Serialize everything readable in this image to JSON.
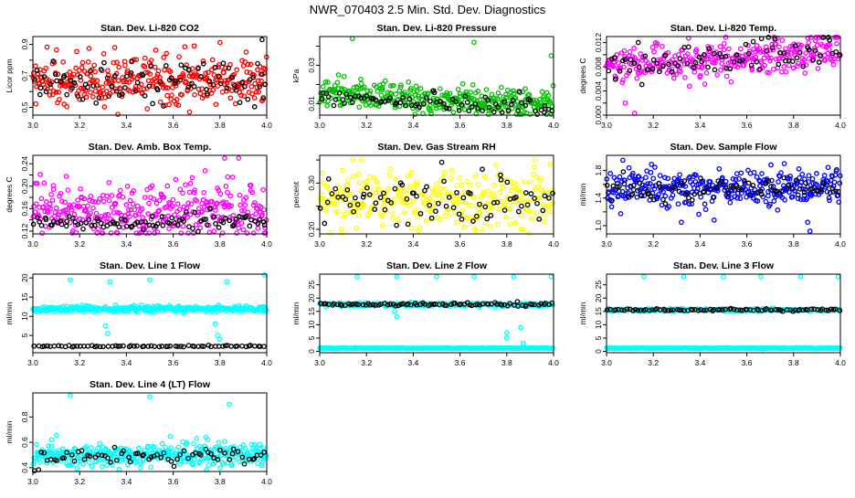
{
  "page_title": "NWR_070403  2.5 Min. Std. Dev. Diagnostics",
  "chart_data": [
    {
      "type": "scatter",
      "title": "Stan. Dev. Li-820 CO2",
      "ylabel": "Licor ppm",
      "xlim": [
        3.0,
        4.0
      ],
      "ylim": [
        0.45,
        0.95
      ],
      "xticks": [
        3.0,
        3.2,
        3.4,
        3.6,
        3.8,
        4.0
      ],
      "yticks": [
        0.5,
        0.6,
        0.7,
        0.8,
        0.9
      ],
      "x_tick_labels": [
        "3.0",
        "3.2",
        "3.4",
        "3.6",
        "3.8",
        "4.0"
      ],
      "y_tick_labels": [
        "0.5",
        "",
        "0.7",
        "",
        "0.9"
      ],
      "series": [
        {
          "name": "series-red",
          "color": "#ff0000",
          "n": 340,
          "mean": 0.665,
          "sd": 0.075,
          "outliers": [
            [
              3.22,
              0.58
            ],
            [
              3.35,
              0.88
            ],
            [
              3.67,
              0.47
            ],
            [
              3.69,
              0.89
            ]
          ]
        },
        {
          "name": "series-black",
          "color": "#000000",
          "n": 90,
          "mean": 0.66,
          "sd": 0.07,
          "outliers": [
            [
              3.98,
              0.93
            ],
            [
              3.985,
              0.56
            ]
          ]
        }
      ]
    },
    {
      "type": "scatter",
      "title": "Stan. Dev. Li-820 Pressure",
      "ylabel": "kPa",
      "xlim": [
        3.0,
        4.0
      ],
      "ylim": [
        0.004,
        0.045
      ],
      "xticks": [
        3.0,
        3.2,
        3.4,
        3.6,
        3.8,
        4.0
      ],
      "yticks": [
        0.01,
        0.02,
        0.03,
        0.04
      ],
      "x_tick_labels": [
        "3.0",
        "3.2",
        "3.4",
        "3.6",
        "3.8",
        "4.0"
      ],
      "y_tick_labels": [
        "0.01",
        "",
        "0.03",
        ""
      ],
      "series": [
        {
          "name": "series-green",
          "color": "#00c000",
          "n": 340,
          "mean": 0.0125,
          "sd": 0.0035,
          "trend": -0.006,
          "outliers": [
            [
              3.14,
              0.044
            ],
            [
              3.66,
              0.042
            ],
            [
              3.99,
              0.035
            ],
            [
              3.08,
              0.025
            ]
          ]
        },
        {
          "name": "series-black",
          "color": "#000000",
          "n": 80,
          "mean": 0.0105,
          "sd": 0.0025,
          "trend": -0.004,
          "outliers": []
        }
      ]
    },
    {
      "type": "scatter",
      "title": "Stan. Dev. Li-820 Temp.",
      "ylabel": "degrees C",
      "xlim": [
        3.0,
        4.0
      ],
      "ylim": [
        0.0,
        0.013
      ],
      "xticks": [
        3.0,
        3.2,
        3.4,
        3.6,
        3.8,
        4.0
      ],
      "yticks": [
        0.0,
        0.002,
        0.004,
        0.006,
        0.008,
        0.01,
        0.012
      ],
      "x_tick_labels": [
        "3.0",
        "3.2",
        "3.4",
        "3.6",
        "3.8",
        "4.0"
      ],
      "y_tick_labels": [
        "0.000",
        "",
        "0.004",
        "",
        "0.008",
        "",
        "0.012"
      ],
      "series": [
        {
          "name": "series-magenta",
          "color": "#ff00ff",
          "n": 320,
          "mean": 0.0095,
          "sd": 0.0015,
          "trend": 0.003,
          "outliers": [
            [
              3.12,
              0.0003
            ],
            [
              3.08,
              0.002
            ]
          ]
        },
        {
          "name": "series-black",
          "color": "#000000",
          "n": 80,
          "mean": 0.0095,
          "sd": 0.0015,
          "trend": 0.003,
          "outliers": []
        }
      ]
    },
    {
      "type": "scatter",
      "title": "Stan. Dev. Amb. Box Temp.",
      "ylabel": "degrees C",
      "xlim": [
        3.0,
        4.0
      ],
      "ylim": [
        0.115,
        0.255
      ],
      "xticks": [
        3.0,
        3.2,
        3.4,
        3.6,
        3.8,
        4.0
      ],
      "yticks": [
        0.12,
        0.14,
        0.16,
        0.18,
        0.2,
        0.22,
        0.24
      ],
      "x_tick_labels": [
        "3.0",
        "3.2",
        "3.4",
        "3.6",
        "3.8",
        "4.0"
      ],
      "y_tick_labels": [
        "0.12",
        "",
        "0.16",
        "",
        "0.20",
        "",
        "0.24"
      ],
      "series": [
        {
          "name": "series-magenta",
          "color": "#ff00ff",
          "n": 340,
          "mean": 0.155,
          "sd": 0.025,
          "outliers": [
            [
              3.82,
              0.25
            ],
            [
              3.88,
              0.25
            ]
          ]
        },
        {
          "name": "series-black",
          "color": "#000000",
          "n": 90,
          "mean": 0.135,
          "sd": 0.008,
          "outliers": []
        }
      ]
    },
    {
      "type": "scatter",
      "title": "Stan. Dev. Gas Stream RH",
      "ylabel": "percent",
      "xlim": [
        3.0,
        4.0
      ],
      "ylim": [
        0.19,
        0.36
      ],
      "xticks": [
        3.0,
        3.2,
        3.4,
        3.6,
        3.8,
        4.0
      ],
      "yticks": [
        0.2,
        0.25,
        0.3,
        0.35
      ],
      "x_tick_labels": [
        "3.0",
        "3.2",
        "3.4",
        "3.6",
        "3.8",
        "4.0"
      ],
      "y_tick_labels": [
        "0.20",
        "",
        "0.30",
        ""
      ],
      "series": [
        {
          "name": "series-yellow",
          "color": "#ffff00",
          "n": 320,
          "mean": 0.265,
          "sd": 0.03,
          "outliers": [
            [
              3.18,
              0.35
            ],
            [
              3.92,
              0.35
            ]
          ]
        },
        {
          "name": "series-black",
          "color": "#000000",
          "n": 80,
          "mean": 0.26,
          "sd": 0.025,
          "outliers": []
        }
      ]
    },
    {
      "type": "scatter",
      "title": "Stan. Dev. Sample Flow",
      "ylabel": "ml/min",
      "xlim": [
        3.0,
        4.0
      ],
      "ylim": [
        0.88,
        2.02
      ],
      "xticks": [
        3.0,
        3.2,
        3.4,
        3.6,
        3.8,
        4.0
      ],
      "yticks": [
        1.0,
        1.2,
        1.4,
        1.6,
        1.8
      ],
      "x_tick_labels": [
        "3.0",
        "3.2",
        "3.4",
        "3.6",
        "3.8",
        "4.0"
      ],
      "y_tick_labels": [
        "1.0",
        "",
        "1.4",
        "",
        "1.8"
      ],
      "series": [
        {
          "name": "series-blue",
          "color": "#0000ff",
          "n": 340,
          "mean": 1.55,
          "sd": 0.13,
          "outliers": [
            [
              3.07,
              1.95
            ],
            [
              3.32,
              1.05
            ],
            [
              3.87,
              0.92
            ],
            [
              3.86,
              1.05
            ],
            [
              3.76,
              1.9
            ]
          ]
        },
        {
          "name": "series-black",
          "color": "#000000",
          "n": 80,
          "mean": 1.52,
          "sd": 0.08,
          "outliers": []
        }
      ]
    },
    {
      "type": "scatter",
      "title": "Stan. Dev. Line 1 Flow",
      "ylabel": "ml/min",
      "xlim": [
        3.0,
        4.0
      ],
      "ylim": [
        0.5,
        21.0
      ],
      "xticks": [
        3.0,
        3.2,
        3.4,
        3.6,
        3.8,
        4.0
      ],
      "yticks": [
        5,
        10,
        15,
        20
      ],
      "x_tick_labels": [
        "3.0",
        "3.2",
        "3.4",
        "3.6",
        "3.8",
        "4.0"
      ],
      "y_tick_labels": [
        "5",
        "10",
        "15",
        "20"
      ],
      "series": [
        {
          "name": "series-cyan",
          "color": "#00ffff",
          "n": 320,
          "mean": 11.8,
          "sd": 0.45,
          "arch": 0.8,
          "outliers": [
            [
              3.16,
              19.5
            ],
            [
              3.33,
              19.0
            ],
            [
              3.5,
              19.5
            ],
            [
              3.83,
              19.0
            ],
            [
              3.99,
              20.8
            ],
            [
              3.31,
              7.5
            ],
            [
              3.32,
              5.5
            ],
            [
              3.78,
              8.0
            ],
            [
              3.79,
              5.0
            ],
            [
              3.8,
              4.0
            ]
          ]
        },
        {
          "name": "series-black",
          "color": "#000000",
          "n": 70,
          "mean": 2.2,
          "sd": 0.08,
          "outliers": []
        }
      ]
    },
    {
      "type": "scatter",
      "title": "Stan. Dev. Line 2 Flow",
      "ylabel": "ml/min",
      "xlim": [
        3.0,
        4.0
      ],
      "ylim": [
        -0.5,
        29.0
      ],
      "xticks": [
        3.0,
        3.2,
        3.4,
        3.6,
        3.8,
        4.0
      ],
      "yticks": [
        0,
        5,
        10,
        15,
        20,
        25
      ],
      "x_tick_labels": [
        "3.0",
        "3.2",
        "3.4",
        "3.6",
        "3.8",
        "4.0"
      ],
      "y_tick_labels": [
        "0",
        "5",
        "10",
        "15",
        "20",
        "25"
      ],
      "series": [
        {
          "name": "series-cyan",
          "color": "#00ffff",
          "n": 300,
          "mean": 1.2,
          "sd": 0.08,
          "outliers": [
            [
              3.16,
              28.0
            ],
            [
              3.33,
              28.0
            ],
            [
              3.5,
              28.0
            ],
            [
              3.66,
              28.0
            ],
            [
              3.83,
              28.0
            ],
            [
              3.99,
              28.0
            ],
            [
              3.32,
              15.0
            ],
            [
              3.33,
              13.0
            ],
            [
              3.8,
              7.0
            ],
            [
              3.8,
              5.0
            ],
            [
              3.86,
              9.0
            ],
            [
              3.87,
              3.0
            ]
          ]
        },
        {
          "name": "series-cyan-upper",
          "color": "#00ffff",
          "n": 200,
          "mean": 17.5,
          "sd": 0.35,
          "outliers": []
        },
        {
          "name": "series-black",
          "color": "#000000",
          "n": 85,
          "mean": 17.6,
          "sd": 0.3,
          "outliers": []
        }
      ]
    },
    {
      "type": "scatter",
      "title": "Stan. Dev. Line 3 Flow",
      "ylabel": "ml/min",
      "xlim": [
        3.0,
        4.0
      ],
      "ylim": [
        -0.5,
        29.0
      ],
      "xticks": [
        3.0,
        3.2,
        3.4,
        3.6,
        3.8,
        4.0
      ],
      "yticks": [
        0,
        5,
        10,
        15,
        20,
        25
      ],
      "x_tick_labels": [
        "3.0",
        "3.2",
        "3.4",
        "3.6",
        "3.8",
        "4.0"
      ],
      "y_tick_labels": [
        "0",
        "5",
        "10",
        "15",
        "20",
        "25"
      ],
      "series": [
        {
          "name": "series-cyan",
          "color": "#00ffff",
          "n": 300,
          "mean": 1.2,
          "sd": 0.08,
          "outliers": [
            [
              3.16,
              28.0
            ],
            [
              3.33,
              28.0
            ],
            [
              3.5,
              28.0
            ],
            [
              3.66,
              28.0
            ],
            [
              3.83,
              28.0
            ],
            [
              3.99,
              28.0
            ]
          ]
        },
        {
          "name": "series-cyan-upper",
          "color": "#00ffff",
          "n": 200,
          "mean": 15.6,
          "sd": 0.25,
          "outliers": []
        },
        {
          "name": "series-black",
          "color": "#000000",
          "n": 85,
          "mean": 15.6,
          "sd": 0.25,
          "outliers": []
        }
      ]
    },
    {
      "type": "scatter",
      "title": "Stan. Dev. Line 4 (LT) Flow",
      "ylabel": "ml/min",
      "xlim": [
        3.0,
        4.0
      ],
      "ylim": [
        0.37,
        0.99
      ],
      "xticks": [
        3.0,
        3.2,
        3.4,
        3.6,
        3.8,
        4.0
      ],
      "yticks": [
        0.4,
        0.6,
        0.8
      ],
      "x_tick_labels": [
        "3.0",
        "3.2",
        "3.4",
        "3.6",
        "3.8",
        "4.0"
      ],
      "y_tick_labels": [
        "0.4",
        "0.6",
        "0.8"
      ],
      "series": [
        {
          "name": "series-cyan",
          "color": "#00ffff",
          "n": 360,
          "mean": 0.5,
          "sd": 0.045,
          "outliers": [
            [
              3.16,
              0.97
            ],
            [
              3.5,
              0.96
            ],
            [
              3.84,
              0.9
            ],
            [
              3.08,
              0.62
            ],
            [
              3.7,
              0.63
            ]
          ]
        },
        {
          "name": "series-black",
          "color": "#000000",
          "n": 70,
          "mean": 0.49,
          "sd": 0.035,
          "outliers": []
        }
      ]
    }
  ]
}
